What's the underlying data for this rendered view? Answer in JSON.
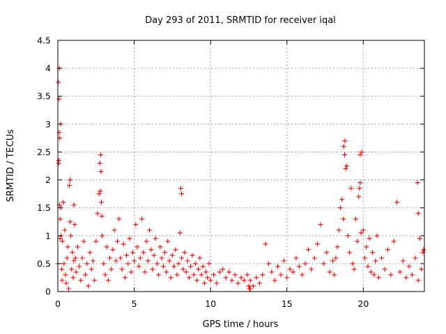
{
  "chart_data": {
    "type": "scatter",
    "title": "Day 293 of 2011, SRMTID for receiver iqal",
    "xlabel": "GPS time / hours",
    "ylabel": "SRMTID / TECUs",
    "xlim": [
      0,
      24
    ],
    "ylim": [
      0,
      4.5
    ],
    "xticks": [
      0,
      5,
      10,
      15,
      20
    ],
    "xtick_labels": [
      "0",
      "5",
      "10",
      "15",
      "20"
    ],
    "yticks": [
      0,
      0.5,
      1,
      1.5,
      2,
      2.5,
      3,
      3.5,
      4,
      4.5
    ],
    "ytick_labels": [
      "0",
      "0.5",
      "1",
      "1.5",
      "2",
      "2.5",
      "3",
      "3.5",
      "4",
      "4.5"
    ],
    "grid": true,
    "marker": "+",
    "series": [
      {
        "name": "SRMTID",
        "color": "#ff0000",
        "x": [
          0.0,
          0.05,
          0.08,
          0.1,
          0.12,
          0.15,
          0.18,
          0.2,
          0.22,
          0.25,
          0.28,
          0.3,
          0.35,
          0.4,
          0.45,
          0.5,
          0.55,
          0.6,
          0.65,
          0.7,
          0.75,
          0.8,
          0.85,
          0.9,
          0.95,
          1.0,
          1.05,
          1.1,
          1.15,
          1.2,
          1.3,
          1.4,
          1.5,
          1.6,
          1.7,
          1.8,
          1.9,
          2.0,
          2.1,
          2.2,
          2.3,
          2.4,
          2.5,
          2.6,
          2.7,
          2.75,
          2.8,
          2.85,
          2.9,
          3.0,
          3.1,
          3.2,
          3.3,
          3.4,
          3.5,
          3.6,
          3.7,
          3.8,
          3.9,
          4.0,
          4.1,
          4.2,
          4.3,
          4.4,
          4.5,
          4.6,
          4.7,
          4.8,
          4.9,
          5.0,
          5.1,
          5.2,
          5.3,
          5.4,
          5.5,
          5.6,
          5.7,
          5.8,
          5.9,
          6.0,
          6.1,
          6.2,
          6.3,
          6.4,
          6.5,
          6.6,
          6.7,
          6.8,
          6.9,
          7.0,
          7.1,
          7.2,
          7.3,
          7.4,
          7.5,
          7.6,
          7.7,
          7.8,
          7.9,
          8.0,
          8.1,
          8.2,
          8.3,
          8.4,
          8.5,
          8.6,
          8.7,
          8.8,
          8.9,
          9.0,
          9.1,
          9.2,
          9.3,
          9.4,
          9.5,
          9.6,
          9.7,
          9.8,
          9.9,
          10.0,
          10.2,
          10.4,
          10.6,
          10.8,
          11.0,
          11.2,
          11.4,
          11.6,
          11.8,
          12.0,
          12.2,
          12.4,
          12.6,
          12.8,
          13.0,
          13.2,
          13.4,
          13.6,
          13.8,
          14.0,
          14.2,
          14.4,
          14.6,
          14.8,
          15.0,
          15.2,
          15.4,
          15.6,
          15.8,
          16.0,
          16.2,
          16.4,
          16.6,
          16.8,
          17.0,
          17.2,
          17.4,
          17.6,
          17.8,
          18.0,
          18.1,
          18.2,
          18.3,
          18.4,
          18.5,
          18.6,
          18.7,
          18.8,
          18.9,
          19.0,
          19.1,
          19.2,
          19.3,
          19.4,
          19.5,
          19.6,
          19.7,
          19.8,
          19.9,
          20.0,
          20.1,
          20.2,
          20.3,
          20.4,
          20.5,
          20.6,
          20.7,
          20.8,
          20.9,
          21.0,
          21.2,
          21.4,
          21.6,
          21.8,
          22.0,
          22.2,
          22.4,
          22.6,
          22.8,
          23.0,
          23.2,
          23.4,
          23.6,
          23.8,
          23.9,
          0.03,
          0.06,
          0.09,
          0.11,
          0.14,
          2.78,
          2.82,
          2.88,
          8.05,
          8.1,
          18.72,
          18.78,
          18.85,
          19.75,
          19.8,
          19.85,
          23.55,
          23.6,
          23.7,
          23.95,
          12.55,
          12.6,
          0.8,
          1.05,
          12.5
        ],
        "y": [
          0.5,
          2.3,
          3.45,
          4.0,
          2.75,
          1.3,
          3.0,
          1.5,
          1.0,
          0.4,
          0.2,
          0.9,
          1.6,
          0.5,
          1.1,
          0.3,
          0.15,
          0.6,
          0.8,
          0.05,
          1.9,
          2.0,
          1.0,
          0.4,
          0.7,
          0.25,
          0.55,
          1.2,
          0.6,
          0.35,
          0.8,
          0.45,
          0.2,
          0.6,
          0.9,
          0.3,
          0.5,
          0.1,
          0.7,
          0.4,
          0.55,
          0.2,
          0.9,
          1.4,
          1.75,
          2.3,
          2.45,
          1.6,
          1.0,
          0.5,
          0.3,
          0.8,
          0.2,
          0.6,
          0.4,
          0.75,
          1.1,
          0.55,
          0.9,
          1.3,
          0.6,
          0.4,
          0.85,
          0.25,
          0.65,
          0.5,
          0.95,
          0.35,
          0.7,
          0.55,
          1.2,
          0.8,
          0.45,
          0.6,
          1.3,
          0.7,
          0.35,
          0.9,
          0.55,
          1.1,
          0.75,
          0.4,
          0.65,
          0.95,
          0.5,
          0.3,
          0.8,
          0.6,
          0.45,
          0.7,
          0.35,
          0.9,
          0.55,
          0.25,
          0.65,
          0.45,
          0.75,
          0.3,
          0.5,
          1.05,
          0.6,
          0.4,
          0.7,
          0.35,
          0.55,
          0.25,
          0.45,
          0.65,
          0.3,
          0.5,
          0.2,
          0.4,
          0.6,
          0.3,
          0.45,
          0.15,
          0.35,
          0.25,
          0.5,
          0.2,
          0.3,
          0.15,
          0.35,
          0.4,
          0.25,
          0.35,
          0.2,
          0.3,
          0.15,
          0.25,
          0.2,
          0.3,
          0.05,
          0.1,
          0.25,
          0.15,
          0.3,
          0.85,
          0.5,
          0.35,
          0.2,
          0.45,
          0.3,
          0.55,
          0.25,
          0.4,
          0.35,
          0.6,
          0.45,
          0.3,
          0.5,
          0.75,
          0.4,
          0.6,
          0.85,
          1.2,
          0.5,
          0.7,
          0.35,
          0.55,
          0.3,
          0.6,
          0.8,
          1.1,
          1.5,
          1.65,
          1.3,
          2.7,
          2.25,
          1.0,
          0.7,
          1.85,
          0.5,
          0.4,
          1.3,
          0.9,
          1.7,
          1.95,
          2.5,
          1.1,
          0.6,
          0.8,
          0.45,
          0.95,
          0.35,
          0.7,
          0.3,
          0.55,
          1.0,
          0.25,
          0.6,
          0.4,
          0.75,
          0.3,
          0.9,
          1.6,
          0.35,
          0.55,
          0.25,
          0.45,
          0.3,
          0.6,
          0.2,
          0.4,
          0.7,
          3.75,
          2.35,
          2.85,
          1.55,
          0.95,
          1.8,
          2.15,
          1.35,
          1.85,
          1.75,
          2.6,
          2.45,
          2.2,
          1.85,
          2.45,
          1.05,
          1.95,
          1.4,
          0.95,
          0.75,
          0.05,
          0.2,
          1.25,
          1.55,
          0.1
        ]
      }
    ]
  }
}
